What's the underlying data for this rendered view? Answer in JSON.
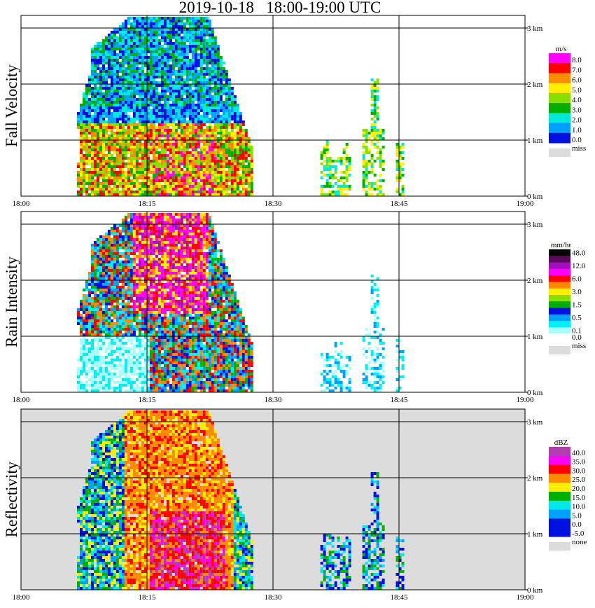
{
  "title": "2019-10-18   18:00-19:00 UTC",
  "time_labels": [
    "18:00",
    "18:15",
    "18:30",
    "18:45",
    "19:00"
  ],
  "height_labels": [
    "0 km",
    "1 km",
    "2 km",
    "3 km"
  ],
  "panels": [
    {
      "label": "Fall Velocity",
      "unit": "m/s",
      "colorbar": [
        {
          "label": "8.0",
          "color": "#ff00ff"
        },
        {
          "label": "7.0",
          "color": "#ff0000"
        },
        {
          "label": "6.0",
          "color": "#ff8c00"
        },
        {
          "label": "5.0",
          "color": "#ffee00"
        },
        {
          "label": "4.0",
          "color": "#88e000"
        },
        {
          "label": "3.0",
          "color": "#00b000"
        },
        {
          "label": "2.0",
          "color": "#00e8d8"
        },
        {
          "label": "1.0",
          "color": "#00a0ff"
        },
        {
          "label": "0.0",
          "color": "#0010e0"
        }
      ],
      "missing_label": "miss",
      "background": "#ffffff"
    },
    {
      "label": "Rain Intensity",
      "unit": "mm/hr",
      "colorbar": [
        {
          "label": "48.0",
          "color": "#000000"
        },
        {
          "label": "",
          "color": "#5a0a5a"
        },
        {
          "label": "12.0",
          "color": "#a010c0"
        },
        {
          "label": "",
          "color": "#ff00ff"
        },
        {
          "label": "6.0",
          "color": "#ff0000"
        },
        {
          "label": "",
          "color": "#ff8800"
        },
        {
          "label": "3.0",
          "color": "#ffee00"
        },
        {
          "label": "",
          "color": "#88e000"
        },
        {
          "label": "1.5",
          "color": "#00b000"
        },
        {
          "label": "",
          "color": "#0010e0"
        },
        {
          "label": "0.5",
          "color": "#00a0ff"
        },
        {
          "label": "",
          "color": "#00f0f0"
        },
        {
          "label": "0.1",
          "color": "#a8ffff"
        },
        {
          "label": "0.0",
          "color": "#ffffff"
        }
      ],
      "missing_label": "miss",
      "background": "#ffffff"
    },
    {
      "label": "Reflectivity",
      "unit": "dBZ",
      "colorbar": [
        {
          "label": "40.0",
          "color": "#b040b0"
        },
        {
          "label": "35.0",
          "color": "#ff00ff"
        },
        {
          "label": "30.0",
          "color": "#ff0000"
        },
        {
          "label": "25.0",
          "color": "#ff8c00"
        },
        {
          "label": "20.0",
          "color": "#ffee00"
        },
        {
          "label": "15.0",
          "color": "#00b000"
        },
        {
          "label": "10.0",
          "color": "#00e8e8"
        },
        {
          "label": "5.0",
          "color": "#00a0ff"
        },
        {
          "label": "0.0",
          "color": "#0010e0"
        },
        {
          "label": "-5.0",
          "color": "#0010e0"
        }
      ],
      "missing_label": "none",
      "background": "#dcdcdc"
    }
  ],
  "chart_data": {
    "type": "heatmap",
    "title": "2019-10-18   18:00-19:00 UTC",
    "x_range": [
      "18:00",
      "19:00"
    ],
    "x_ticks": [
      "18:00",
      "18:15",
      "18:30",
      "18:45",
      "19:00"
    ],
    "y_range_km": [
      0,
      3.2
    ],
    "y_ticks": [
      "0 km",
      "1 km",
      "2 km",
      "3 km"
    ],
    "grid": true,
    "series": [
      {
        "name": "Fall Velocity",
        "unit": "m/s"
      },
      {
        "name": "Rain Intensity",
        "unit": "mm/hr"
      },
      {
        "name": "Reflectivity",
        "unit": "dBZ"
      }
    ]
  }
}
